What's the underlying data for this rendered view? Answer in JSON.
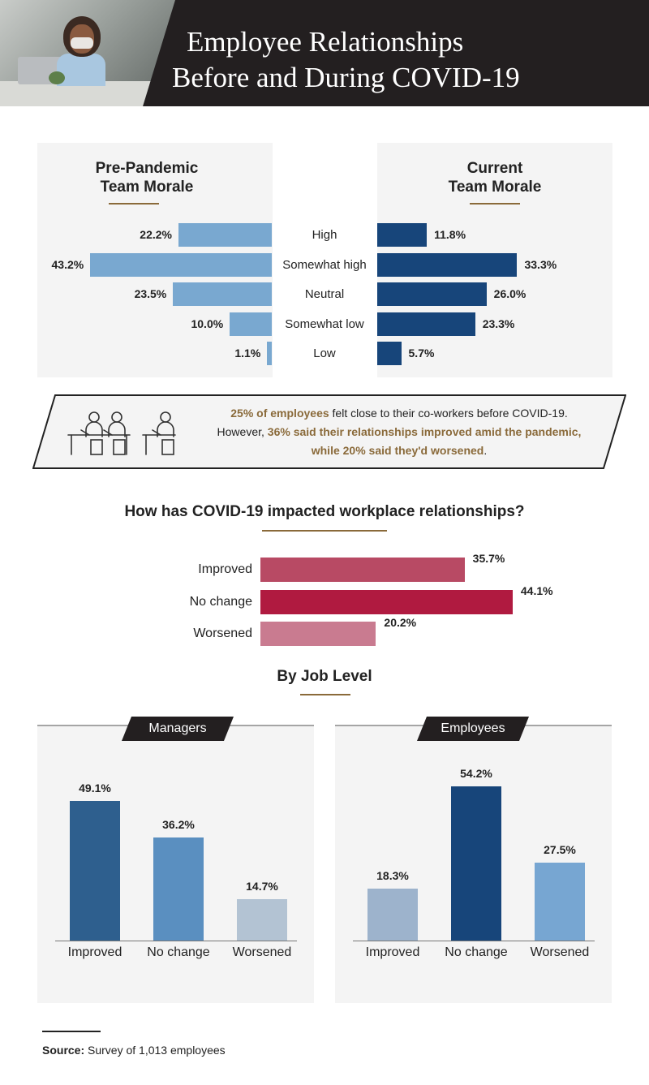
{
  "header": {
    "title_line1": "Employee Relationships",
    "title_line2": "Before and During COVID-19"
  },
  "colors": {
    "header_bg": "#231f20",
    "accent_gold": "#8a6a3a",
    "pre_pandemic_bar": "#79a8d0",
    "current_bar": "#17457a",
    "improved": "#b84a64",
    "no_change": "#b01a40",
    "worsened": "#c97b90"
  },
  "chart_data": [
    {
      "type": "bar",
      "orientation": "horizontal",
      "title": "Pre-Pandemic Team Morale",
      "categories": [
        "High",
        "Somewhat high",
        "Neutral",
        "Somewhat low",
        "Low"
      ],
      "values": [
        22.2,
        43.2,
        23.5,
        10.0,
        1.1
      ],
      "labels": [
        "22.2%",
        "43.2%",
        "23.5%",
        "10.0%",
        "1.1%"
      ],
      "unit": "%"
    },
    {
      "type": "bar",
      "orientation": "horizontal",
      "title": "Current Team Morale",
      "categories": [
        "High",
        "Somewhat high",
        "Neutral",
        "Somewhat low",
        "Low"
      ],
      "values": [
        11.8,
        33.3,
        26.0,
        23.3,
        5.7
      ],
      "labels": [
        "11.8%",
        "33.3%",
        "26.0%",
        "23.3%",
        "5.7%"
      ],
      "unit": "%"
    },
    {
      "type": "bar",
      "orientation": "horizontal",
      "title": "How has COVID-19 impacted workplace relationships?",
      "categories": [
        "Improved",
        "No change",
        "Worsened"
      ],
      "values": [
        35.7,
        44.1,
        20.2
      ],
      "labels": [
        "35.7%",
        "44.1%",
        "20.2%"
      ],
      "unit": "%"
    },
    {
      "type": "bar",
      "title": "Managers",
      "categories": [
        "Improved",
        "No change",
        "Worsened"
      ],
      "values": [
        49.1,
        36.2,
        14.7
      ],
      "labels": [
        "49.1%",
        "36.2%",
        "14.7%"
      ],
      "colors": [
        "#2e5f8e",
        "#5a8fc0",
        "#b3c3d3"
      ],
      "unit": "%"
    },
    {
      "type": "bar",
      "title": "Employees",
      "categories": [
        "Improved",
        "No change",
        "Worsened"
      ],
      "values": [
        18.3,
        54.2,
        27.5
      ],
      "labels": [
        "18.3%",
        "54.2%",
        "27.5%"
      ],
      "colors": [
        "#9db3cc",
        "#17457a",
        "#77a6d2"
      ],
      "unit": "%"
    }
  ],
  "morale": {
    "pre_title_1": "Pre-Pandemic",
    "pre_title_2": "Team Morale",
    "cur_title_1": "Current",
    "cur_title_2": "Team Morale"
  },
  "callout": {
    "gold1": "25% of employees",
    "text1": " felt close to their co-workers before COVID-19.",
    "text2a": "However, ",
    "gold2": "36% said their relationships improved amid the pandemic,",
    "gold3": "while 20% said they'd worsened",
    "text3": "."
  },
  "impact": {
    "title": "How has COVID-19 impacted workplace relationships?"
  },
  "job_level": {
    "title": "By Job Level"
  },
  "source": {
    "label": "Source:",
    "text": " Survey of 1,013 employees"
  }
}
